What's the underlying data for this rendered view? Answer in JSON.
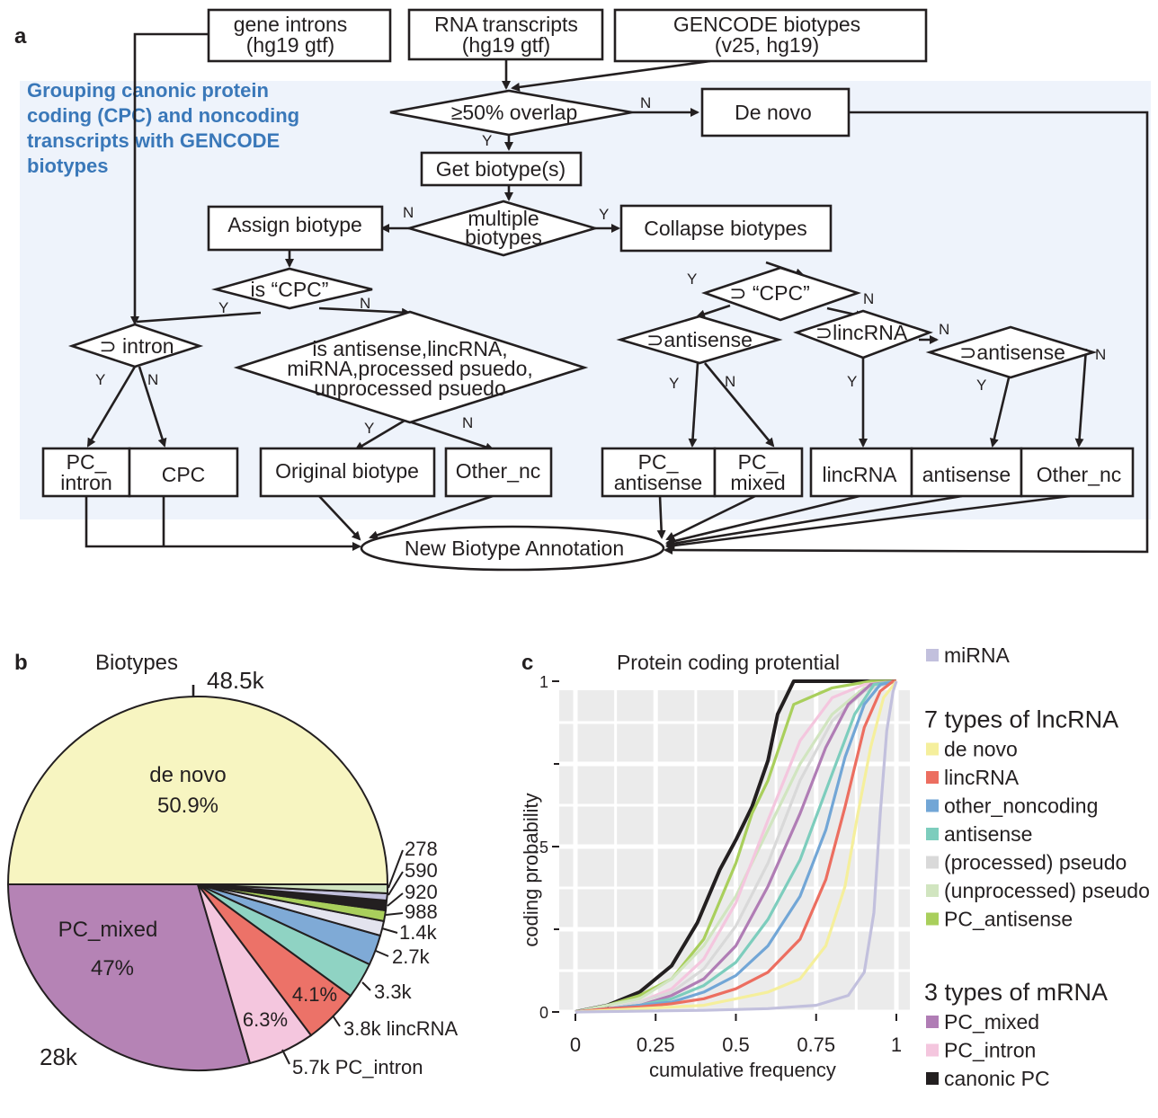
{
  "panels": {
    "a": "a",
    "b": "b",
    "c": "c"
  },
  "flowchart": {
    "grouping_label": [
      "Grouping canonic protein",
      "coding (CPC) and noncoding",
      "transcripts with GENCODE",
      "biotypes"
    ],
    "inputs": {
      "gene_introns": [
        "gene introns",
        "(hg19 gtf)"
      ],
      "rna_transcripts": [
        "RNA transcripts",
        "(hg19 gtf)"
      ],
      "gencode": [
        "GENCODE biotypes",
        "(v25, hg19)"
      ]
    },
    "overlap": "≥50% overlap",
    "de_novo": "De novo",
    "get_biotypes": "Get biotype(s)",
    "multiple_biotypes": [
      "multiple",
      "biotypes"
    ],
    "assign_biotype": "Assign biotype",
    "collapse_biotypes": "Collapse biotypes",
    "is_cpc": "is “CPC”",
    "sup_cpc": "⊃ “CPC”",
    "sup_intron": "⊃ intron",
    "is_nc": [
      "is antisense,lincRNA,",
      "miRNA,processed psuedo,",
      "unprocessed psuedo"
    ],
    "sup_antisense_1": "⊃antisense",
    "sup_lincrna": "⊃lincRNA",
    "sup_antisense_2": "⊃antisense",
    "out_pc_intron": [
      "PC_",
      "intron"
    ],
    "out_cpc": "CPC",
    "out_original": "Original biotype",
    "out_other_nc_1": "Other_nc",
    "out_pc_antisense": [
      "PC_",
      "antisense"
    ],
    "out_pc_mixed": [
      "PC_",
      "mixed"
    ],
    "out_lincrna": "lincRNA",
    "out_antisense": "antisense",
    "out_other_nc_2": "Other_nc",
    "final": "New Biotype Annotation",
    "yes": "Y",
    "no": "N"
  },
  "pie": {
    "title": "Biotypes",
    "big_labels": {
      "top": "48.5k",
      "bottom_left": "28k"
    },
    "inner": {
      "de_novo_name": "de novo",
      "de_novo_pct": "50.9%",
      "pc_mixed_name": "PC_mixed",
      "pc_mixed_pct": "47%",
      "pc_intron_pct": "6.3%",
      "lincrna_pct": "4.1%"
    },
    "small_labels": [
      "278",
      "590",
      "920",
      "988",
      "1.4k",
      "2.7k",
      "3.3k",
      "3.8k lincRNA",
      "5.7k PC_intron"
    ]
  },
  "chart_data": {
    "type": "line",
    "title": "Protein coding protential",
    "xlabel": "cumulative frequency",
    "ylabel": "coding probability",
    "xlim": [
      0,
      1
    ],
    "ylim": [
      0,
      1
    ],
    "x_ticks": [
      "0",
      "0.25",
      "0.5",
      "0.75",
      "1"
    ],
    "y_ticks": [
      "0",
      ".5",
      "1"
    ],
    "grid": true,
    "legend_position": "right",
    "legend_groups": [
      {
        "title": "",
        "items": [
          {
            "name": "miRNA",
            "color": "#c2c0dd"
          }
        ]
      },
      {
        "title": "7 types of lncRNA",
        "items": [
          {
            "name": "de novo",
            "color": "#f5ef9c"
          },
          {
            "name": "lincRNA",
            "color": "#ec6e60"
          },
          {
            "name": "other_noncoding",
            "color": "#72a6d6"
          },
          {
            "name": "antisense",
            "color": "#7dcdbd"
          },
          {
            "name": "(processed) pseudo",
            "color": "#d9d9d9"
          },
          {
            "name": "(unprocessed) pseudo",
            "color": "#d1e5c0"
          },
          {
            "name": "PC_antisense",
            "color": "#a9cf5c"
          }
        ]
      },
      {
        "title": "3 types of mRNA",
        "items": [
          {
            "name": "PC_mixed",
            "color": "#b07db5"
          },
          {
            "name": "PC_intron",
            "color": "#f4c6de"
          },
          {
            "name": "canonic PC",
            "color": "#231f20"
          }
        ]
      }
    ],
    "series": [
      {
        "name": "canonic PC",
        "color": "#231f20",
        "points": [
          [
            0,
            0
          ],
          [
            0.1,
            0.02
          ],
          [
            0.2,
            0.06
          ],
          [
            0.3,
            0.14
          ],
          [
            0.38,
            0.27
          ],
          [
            0.45,
            0.43
          ],
          [
            0.5,
            0.52
          ],
          [
            0.55,
            0.62
          ],
          [
            0.6,
            0.76
          ],
          [
            0.63,
            0.9
          ],
          [
            0.68,
            1
          ],
          [
            1,
            1
          ]
        ]
      },
      {
        "name": "PC_antisense",
        "color": "#a9cf5c",
        "points": [
          [
            0,
            0
          ],
          [
            0.1,
            0.02
          ],
          [
            0.2,
            0.05
          ],
          [
            0.3,
            0.1
          ],
          [
            0.4,
            0.22
          ],
          [
            0.5,
            0.45
          ],
          [
            0.55,
            0.6
          ],
          [
            0.6,
            0.7
          ],
          [
            0.68,
            0.93
          ],
          [
            0.8,
            0.98
          ],
          [
            0.92,
            1
          ],
          [
            1,
            1
          ]
        ]
      },
      {
        "name": "(unprocessed) pseudo",
        "color": "#d1e5c0",
        "points": [
          [
            0,
            0
          ],
          [
            0.1,
            0.02
          ],
          [
            0.2,
            0.04
          ],
          [
            0.3,
            0.1
          ],
          [
            0.4,
            0.2
          ],
          [
            0.5,
            0.35
          ],
          [
            0.6,
            0.55
          ],
          [
            0.7,
            0.75
          ],
          [
            0.8,
            0.9
          ],
          [
            0.9,
            0.98
          ],
          [
            1,
            1
          ]
        ]
      },
      {
        "name": "PC_intron",
        "color": "#f4c6de",
        "points": [
          [
            0,
            0
          ],
          [
            0.1,
            0.01
          ],
          [
            0.2,
            0.03
          ],
          [
            0.3,
            0.07
          ],
          [
            0.4,
            0.16
          ],
          [
            0.5,
            0.33
          ],
          [
            0.6,
            0.58
          ],
          [
            0.7,
            0.82
          ],
          [
            0.8,
            0.95
          ],
          [
            0.9,
            0.99
          ],
          [
            1,
            1
          ]
        ]
      },
      {
        "name": "(processed) pseudo",
        "color": "#d9d9d9",
        "points": [
          [
            0,
            0
          ],
          [
            0.1,
            0.01
          ],
          [
            0.2,
            0.03
          ],
          [
            0.3,
            0.06
          ],
          [
            0.4,
            0.13
          ],
          [
            0.5,
            0.26
          ],
          [
            0.6,
            0.45
          ],
          [
            0.7,
            0.7
          ],
          [
            0.8,
            0.88
          ],
          [
            0.9,
            0.97
          ],
          [
            1,
            1
          ]
        ]
      },
      {
        "name": "PC_mixed",
        "color": "#b07db5",
        "points": [
          [
            0,
            0
          ],
          [
            0.1,
            0.01
          ],
          [
            0.2,
            0.02
          ],
          [
            0.3,
            0.05
          ],
          [
            0.4,
            0.1
          ],
          [
            0.5,
            0.2
          ],
          [
            0.6,
            0.38
          ],
          [
            0.7,
            0.6
          ],
          [
            0.78,
            0.8
          ],
          [
            0.85,
            0.93
          ],
          [
            0.92,
            0.99
          ],
          [
            1,
            1
          ]
        ]
      },
      {
        "name": "antisense",
        "color": "#7dcdbd",
        "points": [
          [
            0,
            0
          ],
          [
            0.1,
            0.01
          ],
          [
            0.2,
            0.02
          ],
          [
            0.3,
            0.04
          ],
          [
            0.4,
            0.08
          ],
          [
            0.5,
            0.15
          ],
          [
            0.6,
            0.28
          ],
          [
            0.7,
            0.46
          ],
          [
            0.8,
            0.72
          ],
          [
            0.87,
            0.9
          ],
          [
            0.93,
            0.99
          ],
          [
            1,
            1
          ]
        ]
      },
      {
        "name": "other_noncoding",
        "color": "#72a6d6",
        "points": [
          [
            0,
            0
          ],
          [
            0.1,
            0.01
          ],
          [
            0.2,
            0.02
          ],
          [
            0.3,
            0.03
          ],
          [
            0.4,
            0.06
          ],
          [
            0.5,
            0.11
          ],
          [
            0.6,
            0.2
          ],
          [
            0.7,
            0.35
          ],
          [
            0.78,
            0.55
          ],
          [
            0.84,
            0.77
          ],
          [
            0.9,
            0.93
          ],
          [
            0.95,
            0.99
          ],
          [
            1,
            1
          ]
        ]
      },
      {
        "name": "lincRNA",
        "color": "#ec6e60",
        "points": [
          [
            0,
            0
          ],
          [
            0.1,
            0.01
          ],
          [
            0.2,
            0.015
          ],
          [
            0.3,
            0.025
          ],
          [
            0.4,
            0.04
          ],
          [
            0.5,
            0.07
          ],
          [
            0.6,
            0.12
          ],
          [
            0.7,
            0.22
          ],
          [
            0.78,
            0.4
          ],
          [
            0.84,
            0.62
          ],
          [
            0.9,
            0.86
          ],
          [
            0.95,
            0.97
          ],
          [
            0.99,
            1
          ],
          [
            1,
            1
          ]
        ]
      },
      {
        "name": "de novo",
        "color": "#f5ef9c",
        "points": [
          [
            0,
            0
          ],
          [
            0.2,
            0.01
          ],
          [
            0.4,
            0.02
          ],
          [
            0.5,
            0.04
          ],
          [
            0.6,
            0.06
          ],
          [
            0.7,
            0.1
          ],
          [
            0.78,
            0.2
          ],
          [
            0.84,
            0.38
          ],
          [
            0.88,
            0.6
          ],
          [
            0.92,
            0.8
          ],
          [
            0.96,
            0.95
          ],
          [
            1,
            1
          ]
        ]
      },
      {
        "name": "miRNA",
        "color": "#c2c0dd",
        "points": [
          [
            0,
            0
          ],
          [
            0.4,
            0.005
          ],
          [
            0.6,
            0.01
          ],
          [
            0.75,
            0.02
          ],
          [
            0.85,
            0.05
          ],
          [
            0.9,
            0.12
          ],
          [
            0.93,
            0.3
          ],
          [
            0.95,
            0.6
          ],
          [
            0.97,
            0.85
          ],
          [
            0.99,
            0.97
          ],
          [
            1,
            1
          ]
        ]
      }
    ]
  }
}
